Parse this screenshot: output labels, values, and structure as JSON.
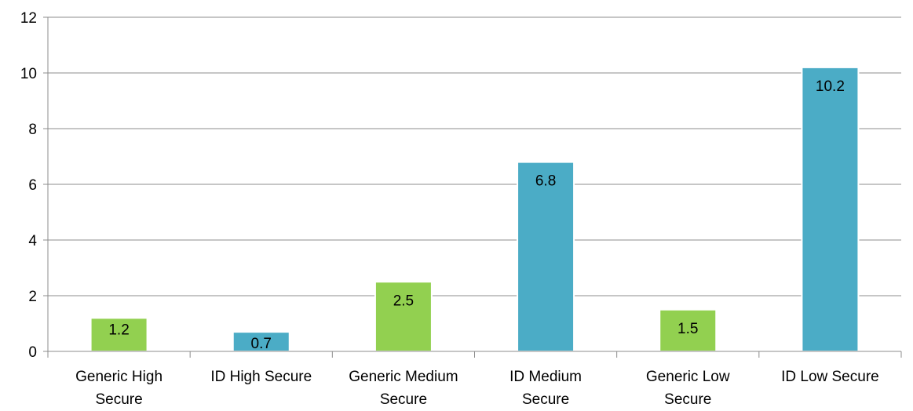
{
  "chart_data": {
    "type": "bar",
    "categories": [
      [
        "Generic High",
        "Secure"
      ],
      [
        "ID High Secure"
      ],
      [
        "Generic Medium",
        "Secure"
      ],
      [
        "ID Medium",
        "Secure"
      ],
      [
        "Generic Low",
        "Secure"
      ],
      [
        "ID Low Secure"
      ]
    ],
    "values": [
      1.2,
      0.7,
      2.5,
      6.8,
      1.5,
      10.2
    ],
    "data_labels": [
      "1.2",
      "0.7",
      "2.5",
      "6.8",
      "1.5",
      "10.2"
    ],
    "bar_colors": [
      "#92d050",
      "#4bacc6",
      "#92d050",
      "#4bacc6",
      "#92d050",
      "#4bacc6"
    ],
    "yticks": [
      "0",
      "2",
      "4",
      "6",
      "8",
      "10",
      "12"
    ],
    "ylim": [
      0,
      12
    ],
    "grid": true,
    "title": "",
    "xlabel": "",
    "ylabel": ""
  }
}
